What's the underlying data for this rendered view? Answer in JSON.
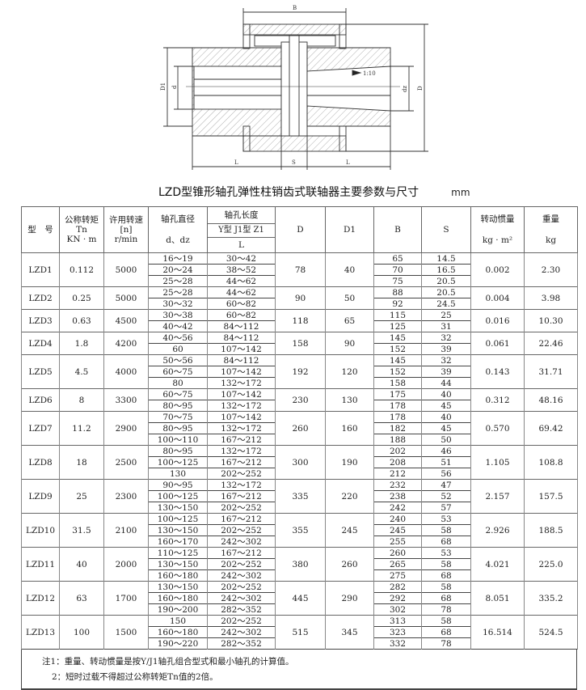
{
  "drawing": {
    "label_B": "B",
    "label_L_left": "L",
    "label_S": "S",
    "label_L_right": "L",
    "label_D1": "D1",
    "label_d": "d",
    "label_dz": "dz",
    "label_D": "D",
    "taper": "1:10"
  },
  "title": "LZD型锥形轴孔弹性柱销齿式联轴器主要参数与尺寸",
  "unit": "mm",
  "headers": {
    "model": "型　号",
    "torque": [
      "公称转矩",
      "Tn",
      "KN · m"
    ],
    "speed": [
      "许用转速",
      "[n]",
      "r/min"
    ],
    "bore_dia": [
      "轴孔直径",
      "d、dz"
    ],
    "bore_len": [
      "轴孔长度",
      "Y型 J1型 Z1",
      "L"
    ],
    "D": "D",
    "D1": "D1",
    "B": "B",
    "S": "S",
    "inertia": [
      "转动惯量",
      "kg · m²"
    ],
    "weight": [
      "重量",
      "kg"
    ]
  },
  "rows": [
    {
      "model": "LZD1",
      "tn": "0.112",
      "n": "5000",
      "d": [
        "16～19",
        "20～24",
        "25～28"
      ],
      "L": [
        "30～42",
        "38～52",
        "44～62"
      ],
      "D": "78",
      "D1": "40",
      "B": [
        "65",
        "70",
        "75"
      ],
      "S": [
        "14.5",
        "16.5",
        "20.5"
      ],
      "inertia": "0.002",
      "weight": "2.30"
    },
    {
      "model": "LZD2",
      "tn": "0.25",
      "n": "5000",
      "d": [
        "25～28",
        "30～32"
      ],
      "L": [
        "44～62",
        "60～82"
      ],
      "D": "90",
      "D1": "50",
      "B": [
        "88",
        "92"
      ],
      "S": [
        "20.5",
        "24.5"
      ],
      "inertia": "0.004",
      "weight": "3.98"
    },
    {
      "model": "LZD3",
      "tn": "0.63",
      "n": "4500",
      "d": [
        "30～38",
        "40～42"
      ],
      "L": [
        "60～82",
        "84～112"
      ],
      "D": "118",
      "D1": "65",
      "B": [
        "115",
        "125"
      ],
      "S": [
        "25",
        "31"
      ],
      "inertia": "0.016",
      "weight": "10.30"
    },
    {
      "model": "LZD4",
      "tn": "1.8",
      "n": "4200",
      "d": [
        "40～56",
        "60"
      ],
      "L": [
        "84～112",
        "107～142"
      ],
      "D": "158",
      "D1": "90",
      "B": [
        "145",
        "152"
      ],
      "S": [
        "32",
        "39"
      ],
      "inertia": "0.061",
      "weight": "22.46"
    },
    {
      "model": "LZD5",
      "tn": "4.5",
      "n": "4000",
      "d": [
        "50～56",
        "60～75",
        "80"
      ],
      "L": [
        "84～112",
        "107～142",
        "132～172"
      ],
      "D": "192",
      "D1": "120",
      "B": [
        "145",
        "152",
        "158"
      ],
      "S": [
        "32",
        "39",
        "44"
      ],
      "inertia": "0.143",
      "weight": "31.71"
    },
    {
      "model": "LZD6",
      "tn": "8",
      "n": "3300",
      "d": [
        "60～75",
        "80～95"
      ],
      "L": [
        "107～142",
        "132～172"
      ],
      "D": "230",
      "D1": "130",
      "B": [
        "175",
        "178"
      ],
      "S": [
        "40",
        "45"
      ],
      "inertia": "0.312",
      "weight": "48.16"
    },
    {
      "model": "LZD7",
      "tn": "11.2",
      "n": "2900",
      "d": [
        "70～75",
        "80～95",
        "100～110"
      ],
      "L": [
        "107～142",
        "132～172",
        "167～212"
      ],
      "D": "260",
      "D1": "160",
      "B": [
        "178",
        "182",
        "188"
      ],
      "S": [
        "40",
        "45",
        "50"
      ],
      "inertia": "0.570",
      "weight": "69.42"
    },
    {
      "model": "LZD8",
      "tn": "18",
      "n": "2500",
      "d": [
        "80～95",
        "100～125",
        "130"
      ],
      "L": [
        "132～172",
        "167～212",
        "202～252"
      ],
      "D": "300",
      "D1": "190",
      "B": [
        "202",
        "208",
        "212"
      ],
      "S": [
        "46",
        "51",
        "56"
      ],
      "inertia": "1.105",
      "weight": "108.8"
    },
    {
      "model": "LZD9",
      "tn": "25",
      "n": "2300",
      "d": [
        "90～95",
        "100～125",
        "130～150"
      ],
      "L": [
        "132～172",
        "167～212",
        "202～252"
      ],
      "D": "335",
      "D1": "220",
      "B": [
        "232",
        "238",
        "242"
      ],
      "S": [
        "47",
        "52",
        "57"
      ],
      "inertia": "2.157",
      "weight": "157.5"
    },
    {
      "model": "LZD10",
      "tn": "31.5",
      "n": "2100",
      "d": [
        "100～125",
        "130～150",
        "160～170"
      ],
      "L": [
        "167～212",
        "202～252",
        "242～302"
      ],
      "D": "355",
      "D1": "245",
      "B": [
        "240",
        "245",
        "255"
      ],
      "S": [
        "53",
        "58",
        "68"
      ],
      "inertia": "2.926",
      "weight": "188.5"
    },
    {
      "model": "LZD11",
      "tn": "40",
      "n": "2000",
      "d": [
        "110～125",
        "130～150",
        "160～180"
      ],
      "L": [
        "167～212",
        "202～252",
        "242～302"
      ],
      "D": "380",
      "D1": "260",
      "B": [
        "260",
        "265",
        "275"
      ],
      "S": [
        "53",
        "58",
        "68"
      ],
      "inertia": "4.021",
      "weight": "225.0"
    },
    {
      "model": "LZD12",
      "tn": "63",
      "n": "1700",
      "d": [
        "130～150",
        "160～180",
        "190～200"
      ],
      "L": [
        "202～252",
        "242～302",
        "282～352"
      ],
      "D": "445",
      "D1": "290",
      "B": [
        "282",
        "292",
        "302"
      ],
      "S": [
        "58",
        "68",
        "78"
      ],
      "inertia": "8.051",
      "weight": "335.2"
    },
    {
      "model": "LZD13",
      "tn": "100",
      "n": "1500",
      "d": [
        "150",
        "160～180",
        "190～220"
      ],
      "L": [
        "202～252",
        "242～302",
        "282～352"
      ],
      "D": "515",
      "D1": "345",
      "B": [
        "313",
        "323",
        "332"
      ],
      "S": [
        "58",
        "68",
        "78"
      ],
      "inertia": "16.514",
      "weight": "524.5"
    }
  ],
  "notes": [
    "注1：重量、转动惯量是按Y/J1轴孔组合型式和最小轴孔的计算值。",
    "2：短时过载不得超过公称转矩Tn值的2倍。"
  ]
}
